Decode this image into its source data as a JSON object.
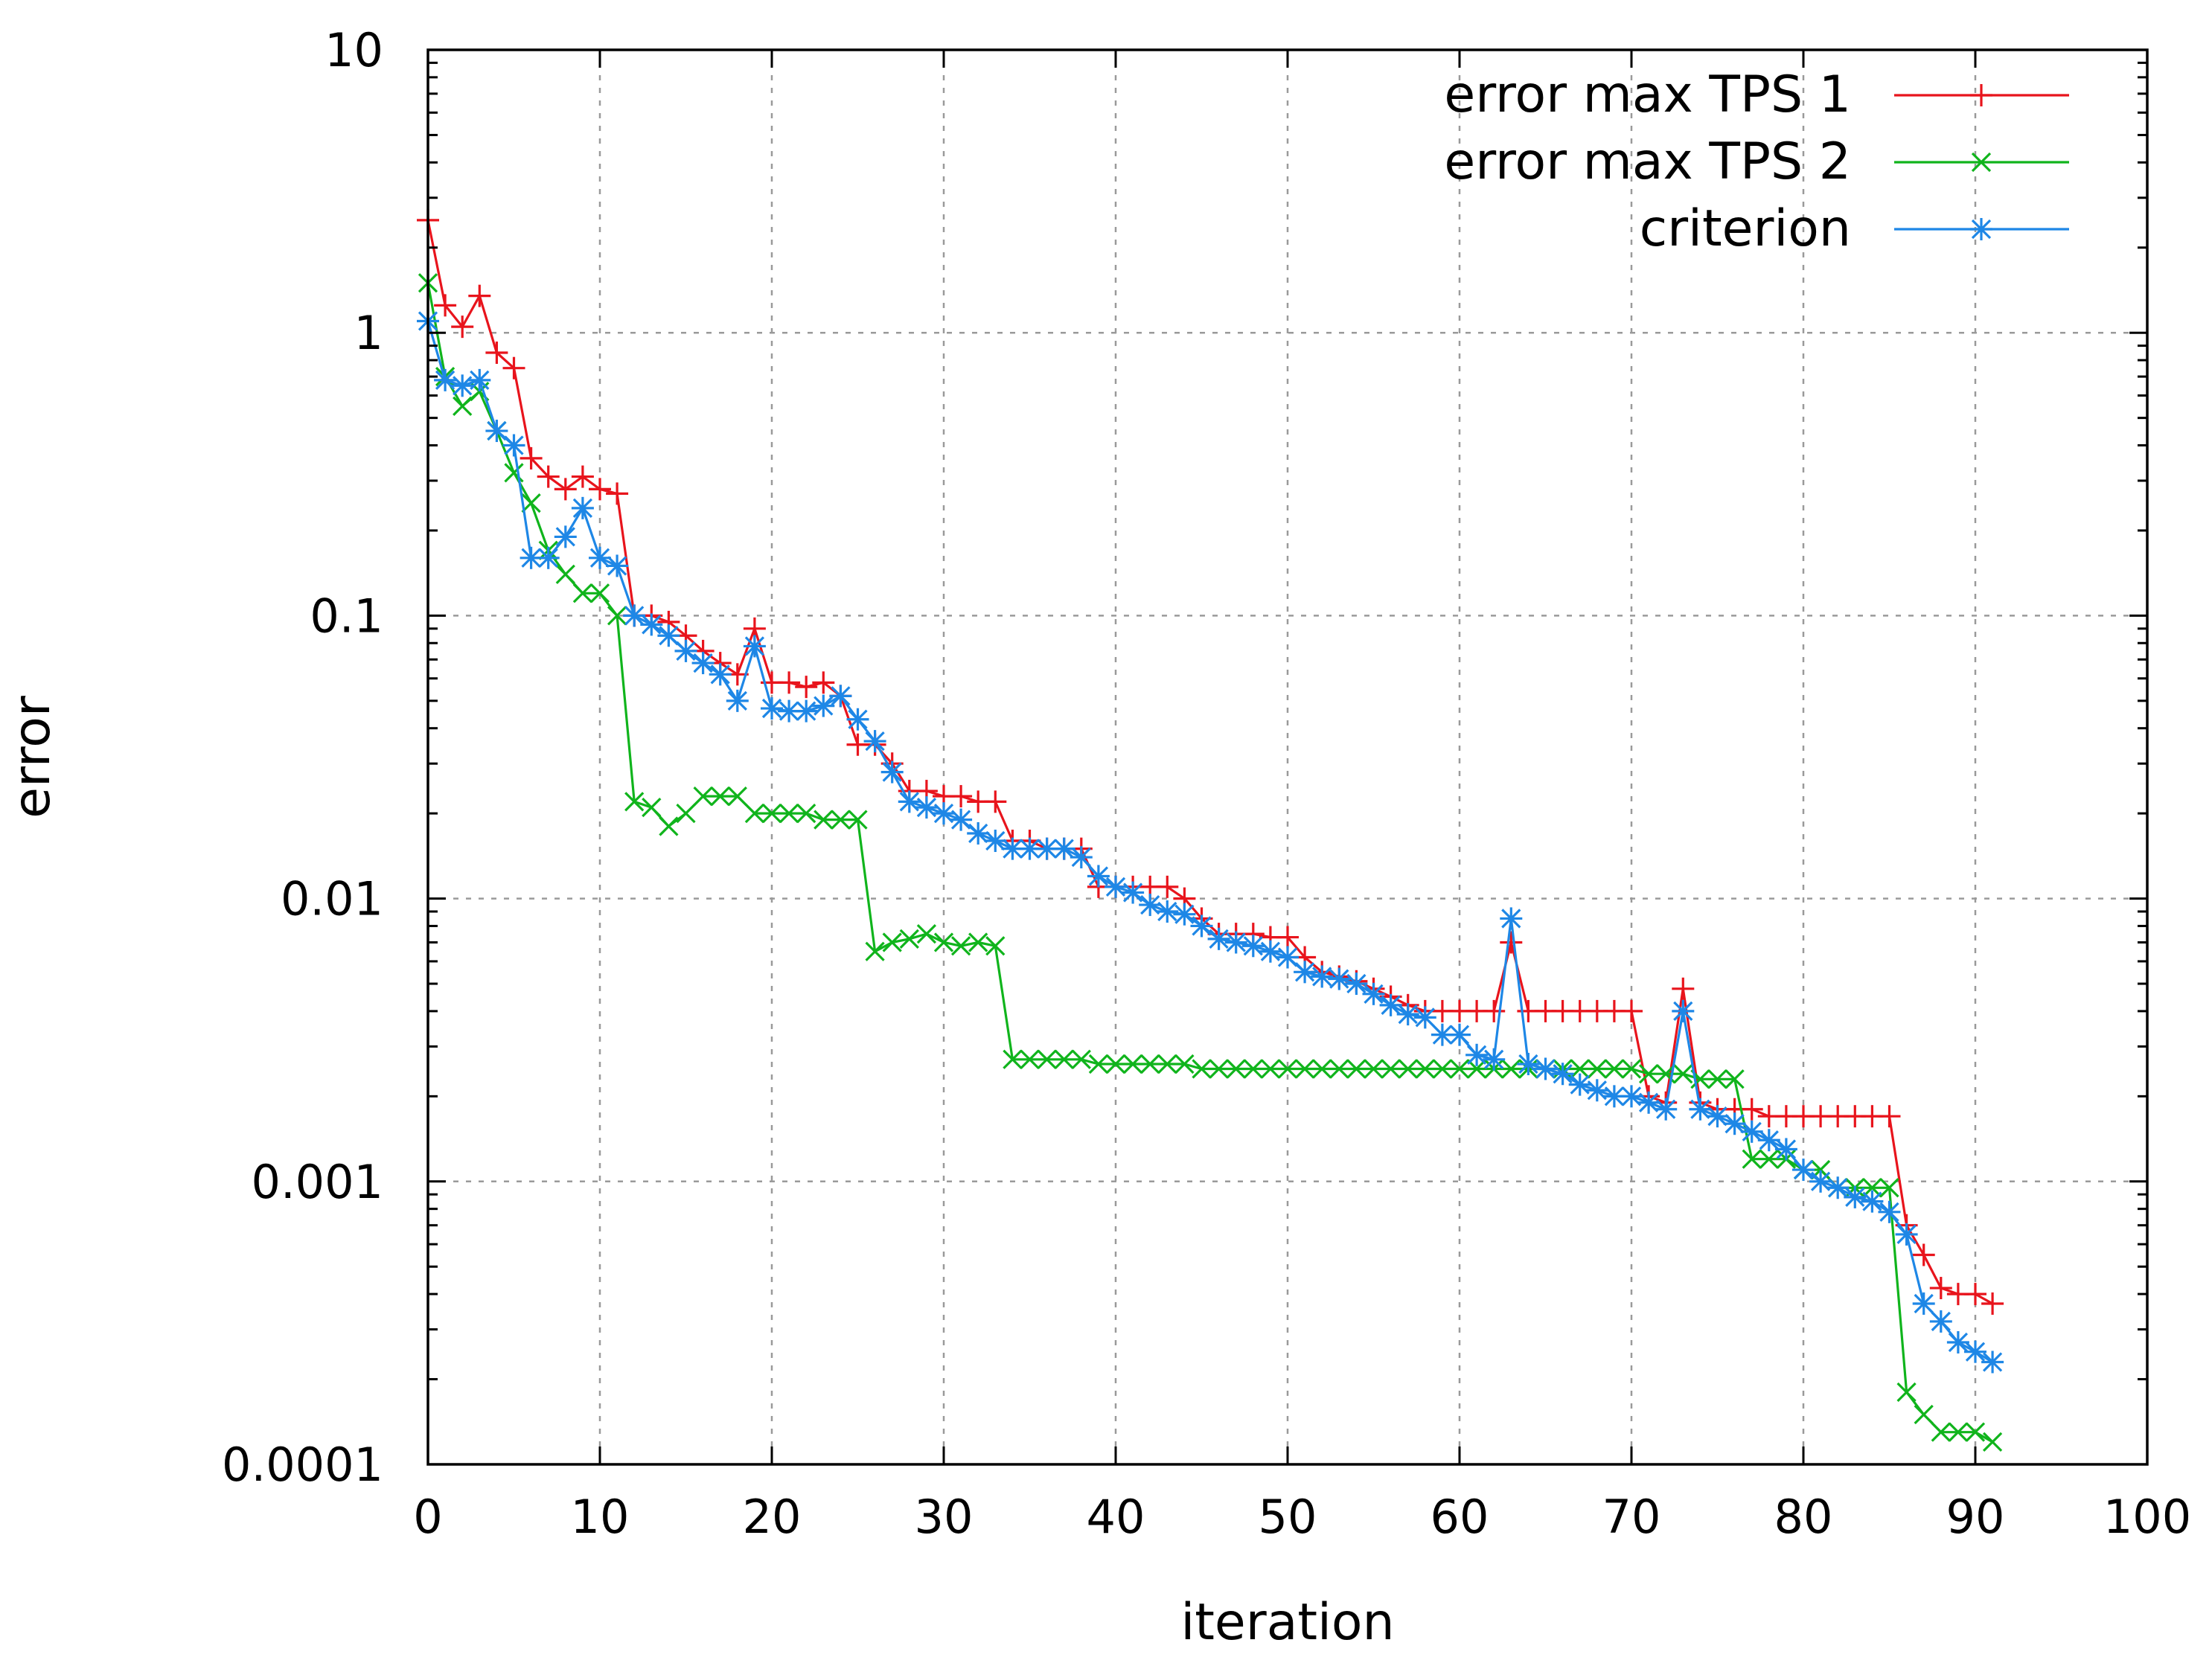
{
  "chart_data": {
    "type": "line",
    "title": "",
    "xlabel": "iteration",
    "ylabel": "error",
    "xlim": [
      0,
      100
    ],
    "ylim": [
      0.0001,
      10
    ],
    "yscale": "log",
    "grid": true,
    "legend_position": "top-right",
    "x_ticks": [
      "0",
      "10",
      "20",
      "30",
      "40",
      "50",
      "60",
      "70",
      "80",
      "90",
      "100"
    ],
    "y_ticks": [
      "10",
      "1",
      "0.1",
      "0.01",
      "0.001",
      "0.0001"
    ],
    "series": [
      {
        "name": "error max TPS 1",
        "color": "#e8141c",
        "marker": "plus",
        "points": [
          [
            0,
            2.5
          ],
          [
            1,
            1.25
          ],
          [
            2,
            1.05
          ],
          [
            3,
            1.35
          ],
          [
            4,
            0.85
          ],
          [
            5,
            0.75
          ],
          [
            6,
            0.36
          ],
          [
            7,
            0.31
          ],
          [
            8,
            0.28
          ],
          [
            9,
            0.31
          ],
          [
            10,
            0.28
          ],
          [
            11,
            0.27
          ],
          [
            12,
            0.1
          ],
          [
            13,
            0.1
          ],
          [
            14,
            0.095
          ],
          [
            15,
            0.085
          ],
          [
            16,
            0.075
          ],
          [
            17,
            0.068
          ],
          [
            18,
            0.062
          ],
          [
            19,
            0.09
          ],
          [
            20,
            0.058
          ],
          [
            21,
            0.058
          ],
          [
            22,
            0.056
          ],
          [
            23,
            0.058
          ],
          [
            24,
            0.052
          ],
          [
            25,
            0.035
          ],
          [
            26,
            0.035
          ],
          [
            27,
            0.03
          ],
          [
            28,
            0.024
          ],
          [
            29,
            0.024
          ],
          [
            30,
            0.023
          ],
          [
            31,
            0.023
          ],
          [
            32,
            0.022
          ],
          [
            33,
            0.022
          ],
          [
            34,
            0.016
          ],
          [
            35,
            0.016
          ],
          [
            36,
            0.015
          ],
          [
            37,
            0.015
          ],
          [
            38,
            0.015
          ],
          [
            39,
            0.011
          ],
          [
            40,
            0.011
          ],
          [
            41,
            0.011
          ],
          [
            42,
            0.011
          ],
          [
            43,
            0.011
          ],
          [
            44,
            0.01
          ],
          [
            45,
            0.0085
          ],
          [
            46,
            0.0075
          ],
          [
            47,
            0.0075
          ],
          [
            48,
            0.0075
          ],
          [
            49,
            0.0073
          ],
          [
            50,
            0.0073
          ],
          [
            51,
            0.0062
          ],
          [
            52,
            0.0055
          ],
          [
            53,
            0.0053
          ],
          [
            54,
            0.0051
          ],
          [
            55,
            0.0048
          ],
          [
            56,
            0.0045
          ],
          [
            57,
            0.0042
          ],
          [
            58,
            0.004
          ],
          [
            59,
            0.004
          ],
          [
            60,
            0.004
          ],
          [
            61,
            0.004
          ],
          [
            62,
            0.004
          ],
          [
            63,
            0.007
          ],
          [
            64,
            0.004
          ],
          [
            65,
            0.004
          ],
          [
            66,
            0.004
          ],
          [
            67,
            0.004
          ],
          [
            68,
            0.004
          ],
          [
            69,
            0.004
          ],
          [
            70,
            0.004
          ],
          [
            71,
            0.002
          ],
          [
            72,
            0.0019
          ],
          [
            73,
            0.0048
          ],
          [
            74,
            0.0019
          ],
          [
            75,
            0.0018
          ],
          [
            76,
            0.0018
          ],
          [
            77,
            0.0018
          ],
          [
            78,
            0.0017
          ],
          [
            79,
            0.0017
          ],
          [
            80,
            0.0017
          ],
          [
            81,
            0.0017
          ],
          [
            82,
            0.0017
          ],
          [
            83,
            0.0017
          ],
          [
            84,
            0.0017
          ],
          [
            85,
            0.0017
          ],
          [
            86,
            0.0007
          ],
          [
            87,
            0.00055
          ],
          [
            88,
            0.00042
          ],
          [
            89,
            0.0004
          ],
          [
            90,
            0.0004
          ],
          [
            91,
            0.00037
          ]
        ]
      },
      {
        "name": "error max TPS 2",
        "color": "#10b41c",
        "marker": "cross",
        "points": [
          [
            0,
            1.5
          ],
          [
            1,
            0.7
          ],
          [
            2,
            0.55
          ],
          [
            3,
            0.62
          ],
          [
            4,
            0.45
          ],
          [
            5,
            0.32
          ],
          [
            6,
            0.25
          ],
          [
            7,
            0.17
          ],
          [
            8,
            0.14
          ],
          [
            9,
            0.12
          ],
          [
            10,
            0.12
          ],
          [
            11,
            0.1
          ],
          [
            12,
            0.022
          ],
          [
            13,
            0.021
          ],
          [
            14,
            0.018
          ],
          [
            15,
            0.02
          ],
          [
            16,
            0.023
          ],
          [
            17,
            0.023
          ],
          [
            18,
            0.023
          ],
          [
            19,
            0.02
          ],
          [
            20,
            0.02
          ],
          [
            21,
            0.02
          ],
          [
            22,
            0.02
          ],
          [
            23,
            0.019
          ],
          [
            24,
            0.019
          ],
          [
            25,
            0.019
          ],
          [
            26,
            0.0065
          ],
          [
            27,
            0.007
          ],
          [
            28,
            0.0072
          ],
          [
            29,
            0.0075
          ],
          [
            30,
            0.007
          ],
          [
            31,
            0.0068
          ],
          [
            32,
            0.007
          ],
          [
            33,
            0.0068
          ],
          [
            34,
            0.0027
          ],
          [
            35,
            0.0027
          ],
          [
            36,
            0.0027
          ],
          [
            37,
            0.0027
          ],
          [
            38,
            0.0027
          ],
          [
            39,
            0.0026
          ],
          [
            40,
            0.0026
          ],
          [
            41,
            0.0026
          ],
          [
            42,
            0.0026
          ],
          [
            43,
            0.0026
          ],
          [
            44,
            0.0026
          ],
          [
            45,
            0.0025
          ],
          [
            46,
            0.0025
          ],
          [
            47,
            0.0025
          ],
          [
            48,
            0.0025
          ],
          [
            49,
            0.0025
          ],
          [
            50,
            0.0025
          ],
          [
            51,
            0.0025
          ],
          [
            52,
            0.0025
          ],
          [
            53,
            0.0025
          ],
          [
            54,
            0.0025
          ],
          [
            55,
            0.0025
          ],
          [
            56,
            0.0025
          ],
          [
            57,
            0.0025
          ],
          [
            58,
            0.0025
          ],
          [
            59,
            0.0025
          ],
          [
            60,
            0.0025
          ],
          [
            61,
            0.0025
          ],
          [
            62,
            0.0025
          ],
          [
            63,
            0.0025
          ],
          [
            64,
            0.0025
          ],
          [
            65,
            0.0025
          ],
          [
            66,
            0.0025
          ],
          [
            67,
            0.0025
          ],
          [
            68,
            0.0025
          ],
          [
            69,
            0.0025
          ],
          [
            70,
            0.0025
          ],
          [
            71,
            0.0024
          ],
          [
            72,
            0.0024
          ],
          [
            73,
            0.0024
          ],
          [
            74,
            0.0023
          ],
          [
            75,
            0.0023
          ],
          [
            76,
            0.0023
          ],
          [
            77,
            0.0012
          ],
          [
            78,
            0.0012
          ],
          [
            79,
            0.0012
          ],
          [
            80,
            0.0011
          ],
          [
            81,
            0.0011
          ],
          [
            82,
            0.00095
          ],
          [
            83,
            0.00095
          ],
          [
            84,
            0.00095
          ],
          [
            85,
            0.00095
          ],
          [
            86,
            0.00018
          ],
          [
            87,
            0.00015
          ],
          [
            88,
            0.00013
          ],
          [
            89,
            0.00013
          ],
          [
            90,
            0.00013
          ],
          [
            91,
            0.00012
          ]
        ]
      },
      {
        "name": "criterion",
        "color": "#1e87e6",
        "marker": "star",
        "points": [
          [
            0,
            1.1
          ],
          [
            1,
            0.68
          ],
          [
            2,
            0.65
          ],
          [
            3,
            0.68
          ],
          [
            4,
            0.45
          ],
          [
            5,
            0.4
          ],
          [
            6,
            0.16
          ],
          [
            7,
            0.16
          ],
          [
            8,
            0.19
          ],
          [
            9,
            0.24
          ],
          [
            10,
            0.16
          ],
          [
            11,
            0.15
          ],
          [
            12,
            0.1
          ],
          [
            13,
            0.093
          ],
          [
            14,
            0.085
          ],
          [
            15,
            0.075
          ],
          [
            16,
            0.068
          ],
          [
            17,
            0.062
          ],
          [
            18,
            0.05
          ],
          [
            19,
            0.078
          ],
          [
            20,
            0.047
          ],
          [
            21,
            0.046
          ],
          [
            22,
            0.046
          ],
          [
            23,
            0.048
          ],
          [
            24,
            0.052
          ],
          [
            25,
            0.043
          ],
          [
            26,
            0.036
          ],
          [
            27,
            0.028
          ],
          [
            28,
            0.022
          ],
          [
            29,
            0.021
          ],
          [
            30,
            0.02
          ],
          [
            31,
            0.019
          ],
          [
            32,
            0.017
          ],
          [
            33,
            0.016
          ],
          [
            34,
            0.015
          ],
          [
            35,
            0.015
          ],
          [
            36,
            0.015
          ],
          [
            37,
            0.015
          ],
          [
            38,
            0.014
          ],
          [
            39,
            0.012
          ],
          [
            40,
            0.011
          ],
          [
            41,
            0.0105
          ],
          [
            42,
            0.0095
          ],
          [
            43,
            0.009
          ],
          [
            44,
            0.0088
          ],
          [
            45,
            0.008
          ],
          [
            46,
            0.0072
          ],
          [
            47,
            0.007
          ],
          [
            48,
            0.0068
          ],
          [
            49,
            0.0065
          ],
          [
            50,
            0.0062
          ],
          [
            51,
            0.0055
          ],
          [
            52,
            0.0053
          ],
          [
            53,
            0.0052
          ],
          [
            54,
            0.005
          ],
          [
            55,
            0.0046
          ],
          [
            56,
            0.0042
          ],
          [
            57,
            0.0039
          ],
          [
            58,
            0.0038
          ],
          [
            59,
            0.0033
          ],
          [
            60,
            0.0033
          ],
          [
            61,
            0.0028
          ],
          [
            62,
            0.0027
          ],
          [
            63,
            0.0085
          ],
          [
            64,
            0.0026
          ],
          [
            65,
            0.0025
          ],
          [
            66,
            0.0024
          ],
          [
            67,
            0.0022
          ],
          [
            68,
            0.0021
          ],
          [
            69,
            0.002
          ],
          [
            70,
            0.002
          ],
          [
            71,
            0.0019
          ],
          [
            72,
            0.0018
          ],
          [
            73,
            0.004
          ],
          [
            74,
            0.0018
          ],
          [
            75,
            0.0017
          ],
          [
            76,
            0.0016
          ],
          [
            77,
            0.0015
          ],
          [
            78,
            0.0014
          ],
          [
            79,
            0.0013
          ],
          [
            80,
            0.0011
          ],
          [
            81,
            0.001
          ],
          [
            82,
            0.00095
          ],
          [
            83,
            0.00088
          ],
          [
            84,
            0.00085
          ],
          [
            85,
            0.00078
          ],
          [
            86,
            0.00065
          ],
          [
            87,
            0.00037
          ],
          [
            88,
            0.00032
          ],
          [
            89,
            0.00027
          ],
          [
            90,
            0.00025
          ],
          [
            91,
            0.00023
          ]
        ]
      }
    ]
  }
}
